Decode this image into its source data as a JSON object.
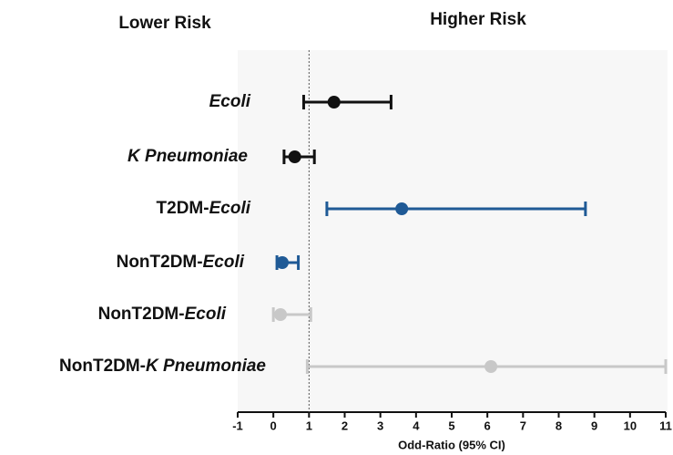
{
  "chart_data": {
    "type": "forest",
    "header_left": "Lower Risk",
    "header_right": "Higher Risk",
    "xlabel": "Odd-Ratio (95% CI)",
    "xlim": [
      -1,
      11
    ],
    "xticks": [
      -1,
      0,
      1,
      2,
      3,
      4,
      5,
      6,
      7,
      8,
      9,
      10,
      11
    ],
    "reference_line": 1,
    "rows": [
      {
        "label": "Ecoli",
        "color": "#111111",
        "value": 1.7,
        "lower": 0.85,
        "upper": 3.3
      },
      {
        "label": "K Pneumoniae",
        "color": "#111111",
        "value": 0.6,
        "lower": 0.3,
        "upper": 1.15
      },
      {
        "prefix": "T2DM-",
        "label": "Ecoli",
        "color": "#1f5a96",
        "value": 3.6,
        "lower": 1.5,
        "upper": 8.75
      },
      {
        "prefix": "NonT2DM-",
        "label": "Ecoli",
        "color": "#1f5a96",
        "value": 0.25,
        "lower": 0.1,
        "upper": 0.7
      },
      {
        "prefix": "NonT2DM-",
        "label": "Ecoli",
        "color": "#c8c8c8",
        "value": 0.2,
        "lower": 0.0,
        "upper": 1.05
      },
      {
        "prefix": "NonT2DM-",
        "label": "K Pneumoniae",
        "color": "#c8c8c8",
        "value": 6.1,
        "lower": 0.95,
        "upper": 11
      }
    ]
  }
}
